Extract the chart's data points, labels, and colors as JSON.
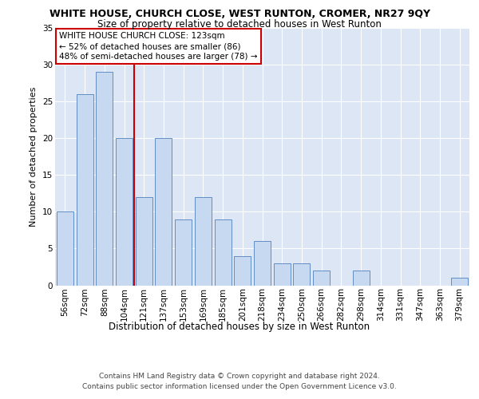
{
  "title": "WHITE HOUSE, CHURCH CLOSE, WEST RUNTON, CROMER, NR27 9QY",
  "subtitle": "Size of property relative to detached houses in West Runton",
  "xlabel": "Distribution of detached houses by size in West Runton",
  "ylabel": "Number of detached properties",
  "categories": [
    "56sqm",
    "72sqm",
    "88sqm",
    "104sqm",
    "121sqm",
    "137sqm",
    "153sqm",
    "169sqm",
    "185sqm",
    "201sqm",
    "218sqm",
    "234sqm",
    "250sqm",
    "266sqm",
    "282sqm",
    "298sqm",
    "314sqm",
    "331sqm",
    "347sqm",
    "363sqm",
    "379sqm"
  ],
  "values": [
    10,
    26,
    29,
    20,
    12,
    20,
    9,
    12,
    9,
    4,
    6,
    3,
    3,
    2,
    0,
    2,
    0,
    0,
    0,
    0,
    1
  ],
  "bar_color": "#c6d9f1",
  "bar_edge_color": "#4f81bd",
  "reference_line_color": "#cc0000",
  "annotation_text": "WHITE HOUSE CHURCH CLOSE: 123sqm\n← 52% of detached houses are smaller (86)\n48% of semi-detached houses are larger (78) →",
  "annotation_box_color": "#ffffff",
  "annotation_box_edge": "#cc0000",
  "ylim": [
    0,
    35
  ],
  "yticks": [
    0,
    5,
    10,
    15,
    20,
    25,
    30,
    35
  ],
  "footer_text": "Contains HM Land Registry data © Crown copyright and database right 2024.\nContains public sector information licensed under the Open Government Licence v3.0.",
  "plot_background": "#dce6f5",
  "grid_color": "#ffffff",
  "title_fontsize": 9,
  "subtitle_fontsize": 8.5,
  "ylabel_fontsize": 8,
  "xlabel_fontsize": 8.5,
  "tick_fontsize": 7.5,
  "footer_fontsize": 6.5
}
